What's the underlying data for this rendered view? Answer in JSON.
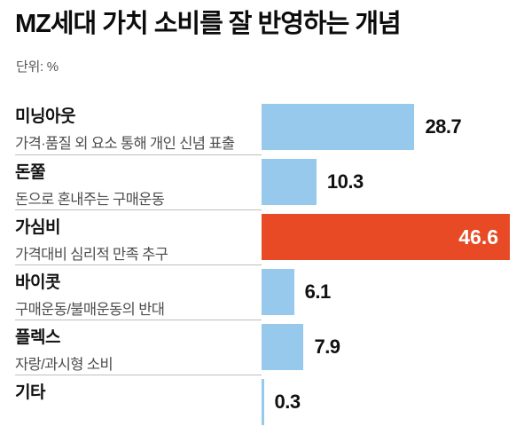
{
  "header": {
    "title": "MZ세대 가치 소비를 잘 반영하는 개념",
    "unit_label": "단위: %"
  },
  "colors": {
    "bar_default": "#97C9EC",
    "bar_highlight": "#E74A25",
    "value_text": "#111111",
    "value_text_inside": "#FFFFFF",
    "label_text": "#111111",
    "sublabel_text": "#4D4D4D",
    "divider": "#BFBFBF"
  },
  "chart_data": {
    "type": "bar",
    "orientation": "horizontal",
    "title": "MZ세대 가치 소비를 잘 반영하는 개념",
    "unit": "%",
    "xlim": [
      0,
      48
    ],
    "grid": false,
    "legend": false,
    "categories": [
      "미닝아웃",
      "돈쭐",
      "가심비",
      "바이콧",
      "플렉스",
      "기타"
    ],
    "values": [
      28.7,
      10.3,
      46.6,
      6.1,
      7.9,
      0.3
    ],
    "highlight_category": "가심비",
    "rows": [
      {
        "label": "미닝아웃",
        "sublabel": "가격·품질 외 요소 통해 개인 신념 표출",
        "value": 28.7,
        "value_label": "28.7",
        "highlight": false
      },
      {
        "label": "돈쭐",
        "sublabel": "돈으로 혼내주는 구매운동",
        "value": 10.3,
        "value_label": "10.3",
        "highlight": false
      },
      {
        "label": "가심비",
        "sublabel": "가격대비 심리적 만족 추구",
        "value": 46.6,
        "value_label": "46.6",
        "highlight": true
      },
      {
        "label": "바이콧",
        "sublabel": "구매운동/불매운동의 반대",
        "value": 6.1,
        "value_label": "6.1",
        "highlight": false
      },
      {
        "label": "플렉스",
        "sublabel": "자랑/과시형 소비",
        "value": 7.9,
        "value_label": "7.9",
        "highlight": false
      },
      {
        "label": "기타",
        "sublabel": "",
        "value": 0.3,
        "value_label": "0.3",
        "highlight": false
      }
    ]
  }
}
